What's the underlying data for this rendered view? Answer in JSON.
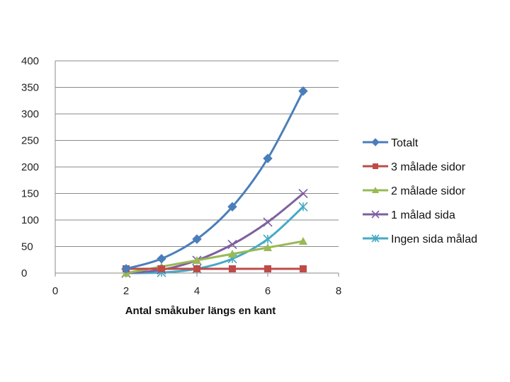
{
  "chart_data": {
    "type": "scatter",
    "title": "",
    "xlabel": "Antal småkuber längs en kant",
    "ylabel": "",
    "xlim": [
      0,
      8
    ],
    "ylim": [
      0,
      400
    ],
    "xticks": [
      "0",
      "2",
      "4",
      "6",
      "8"
    ],
    "yticks": [
      "0",
      "50",
      "100",
      "150",
      "200",
      "250",
      "300",
      "350",
      "400"
    ],
    "grid": "horizontal",
    "legend": "right",
    "series": [
      {
        "name": "Totalt",
        "color": "#4a7ebb",
        "marker": "diamond",
        "x": [
          2,
          3,
          4,
          5,
          6,
          7
        ],
        "y": [
          8,
          27,
          64,
          125,
          216,
          343
        ]
      },
      {
        "name": "3 målade sidor",
        "color": "#be4b48",
        "marker": "square",
        "x": [
          2,
          3,
          4,
          5,
          6,
          7
        ],
        "y": [
          8,
          8,
          8,
          8,
          8,
          8
        ]
      },
      {
        "name": "2 målade sidor",
        "color": "#98b954",
        "marker": "triangle",
        "x": [
          2,
          3,
          4,
          5,
          6,
          7
        ],
        "y": [
          0,
          12,
          24,
          36,
          48,
          60
        ]
      },
      {
        "name": "1 målad sida",
        "color": "#7d60a0",
        "marker": "x",
        "x": [
          2,
          3,
          4,
          5,
          6,
          7
        ],
        "y": [
          0,
          6,
          24,
          54,
          96,
          150
        ]
      },
      {
        "name": "Ingen sida målad",
        "color": "#46aac5",
        "marker": "star",
        "x": [
          2,
          3,
          4,
          5,
          6,
          7
        ],
        "y": [
          0,
          1,
          8,
          27,
          64,
          125
        ]
      }
    ]
  }
}
